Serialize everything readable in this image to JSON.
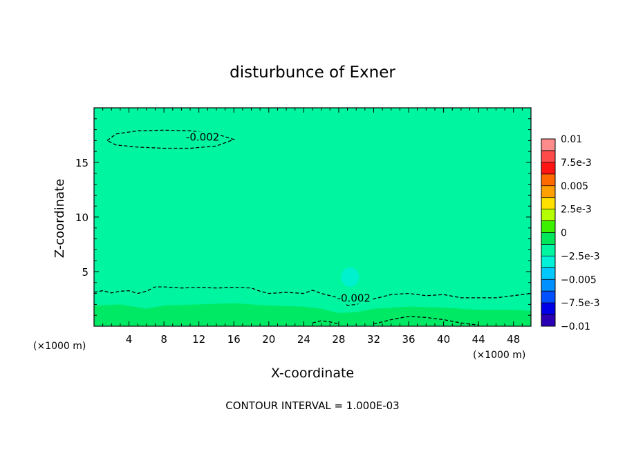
{
  "chart_data": {
    "type": "heatmap",
    "title": "disturbunce of Exner",
    "xlabel": "X-coordinate",
    "ylabel": "Z-coordinate",
    "x_unit_left": "(×1000 m)",
    "x_unit_right": "(×1000 m)",
    "xlim": [
      0,
      50
    ],
    "ylim": [
      0,
      20
    ],
    "x_ticks": [
      4,
      8,
      12,
      16,
      20,
      24,
      28,
      32,
      36,
      40,
      44,
      48
    ],
    "y_ticks": [
      5,
      10,
      15
    ],
    "footnote": "CONTOUR INTERVAL = 1.000E-03",
    "background_color": "#00f5a0",
    "colorbar": {
      "levels": [
        {
          "label": "0.01",
          "value": 0.01,
          "color": "#ff8c8c"
        },
        {
          "label": "",
          "value": 0.00875,
          "color": "#ff4a4a"
        },
        {
          "label": "7.5e-3",
          "value": 0.0075,
          "color": "#ff1414"
        },
        {
          "label": "",
          "value": 0.00625,
          "color": "#ff6a00"
        },
        {
          "label": "0.005",
          "value": 0.005,
          "color": "#ffa000"
        },
        {
          "label": "",
          "value": 0.00375,
          "color": "#ffe000"
        },
        {
          "label": "2.5e-3",
          "value": 0.0025,
          "color": "#b4ff00"
        },
        {
          "label": "",
          "value": 0.00125,
          "color": "#3cf000"
        },
        {
          "label": "0",
          "value": 0,
          "color": "#00e65a"
        },
        {
          "label": "",
          "value": -0.00125,
          "color": "#00f5a0"
        },
        {
          "label": "-2.5e-3",
          "value": -0.0025,
          "color": "#00f0d8"
        },
        {
          "label": "",
          "value": -0.00375,
          "color": "#00c8ff"
        },
        {
          "label": "-0.005",
          "value": -0.005,
          "color": "#0090ff"
        },
        {
          "label": "",
          "value": -0.00625,
          "color": "#0050ff"
        },
        {
          "label": "-7.5e-3",
          "value": -0.0075,
          "color": "#0000e6"
        },
        {
          "label": "",
          "value": -0.00875,
          "color": "#2a00b4"
        },
        {
          "label": "-0.01",
          "value": -0.01,
          "color": "#7a00b4"
        }
      ]
    },
    "contours": [
      {
        "label": "-0.002",
        "style": "dashed",
        "points": [
          [
            1.5,
            17.0
          ],
          [
            2.5,
            17.6
          ],
          [
            5,
            17.9
          ],
          [
            8,
            17.95
          ],
          [
            11,
            17.9
          ],
          [
            14,
            17.6
          ],
          [
            16,
            17.1
          ],
          [
            14,
            16.5
          ],
          [
            11,
            16.3
          ],
          [
            8,
            16.3
          ],
          [
            5,
            16.4
          ],
          [
            2.5,
            16.6
          ],
          [
            1.5,
            17.0
          ]
        ]
      },
      {
        "label": "-0.002",
        "style": "dashed",
        "points": [
          [
            0,
            3.1
          ],
          [
            1,
            3.25
          ],
          [
            2,
            3.05
          ],
          [
            3,
            3.2
          ],
          [
            4,
            3.25
          ],
          [
            5,
            3.0
          ],
          [
            6,
            3.2
          ],
          [
            7,
            3.6
          ],
          [
            8,
            3.6
          ],
          [
            10,
            3.5
          ],
          [
            12,
            3.55
          ],
          [
            14,
            3.5
          ],
          [
            16,
            3.55
          ],
          [
            18,
            3.5
          ],
          [
            19,
            3.2
          ],
          [
            20,
            3.0
          ],
          [
            22,
            3.1
          ],
          [
            24,
            3.0
          ],
          [
            25,
            3.3
          ],
          [
            26,
            3.0
          ],
          [
            27,
            2.8
          ],
          [
            28,
            2.6
          ],
          [
            29,
            1.9
          ],
          [
            30,
            2.0
          ],
          [
            32,
            2.5
          ],
          [
            33,
            2.7
          ],
          [
            34,
            2.9
          ],
          [
            36,
            3.0
          ],
          [
            38,
            2.8
          ],
          [
            40,
            2.9
          ],
          [
            42,
            2.6
          ],
          [
            44,
            2.6
          ],
          [
            46,
            2.6
          ],
          [
            48,
            2.8
          ],
          [
            50,
            3.0
          ]
        ]
      },
      {
        "label": "",
        "style": "dashed",
        "points": [
          [
            25,
            0.3
          ],
          [
            26,
            0.5
          ],
          [
            27,
            0.4
          ],
          [
            28,
            0.2
          ]
        ]
      },
      {
        "label": "",
        "style": "dashed",
        "points": [
          [
            32,
            0.2
          ],
          [
            34,
            0.6
          ],
          [
            36,
            0.9
          ],
          [
            38,
            0.8
          ],
          [
            40,
            0.6
          ],
          [
            42,
            0.3
          ],
          [
            44,
            0.1
          ]
        ]
      }
    ]
  }
}
